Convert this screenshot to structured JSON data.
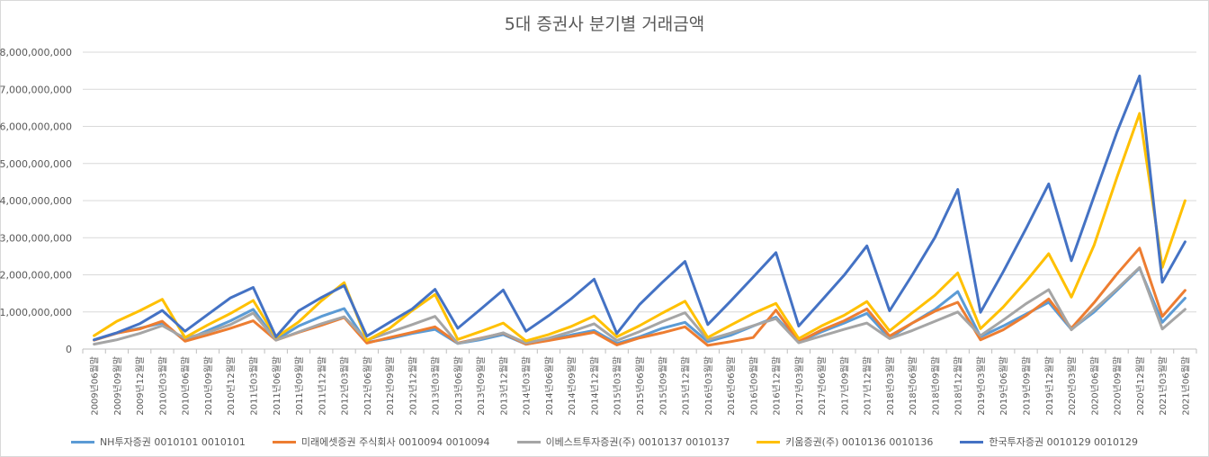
{
  "chart_data": {
    "type": "line",
    "title": "5대 증권사 분기별 거래금액",
    "xlabel": "",
    "ylabel": "",
    "ylim": [
      0,
      8000000000
    ],
    "yticks": [
      0,
      1000000000,
      2000000000,
      3000000000,
      4000000000,
      5000000000,
      6000000000,
      7000000000,
      8000000000
    ],
    "ytick_labels": [
      "0",
      "1,000,000,000",
      "2,000,000,000",
      "3,000,000,000",
      "4,000,000,000",
      "5,000,000,000",
      "6,000,000,000",
      "7,000,000,000",
      "8,000,000,000"
    ],
    "grid": true,
    "legend_position": "bottom",
    "categories": [
      "2009년06월말",
      "2009년09월말",
      "2009년12월말",
      "2010년03월말",
      "2010년06월말",
      "2010년09월말",
      "2010년12월말",
      "2011년03월말",
      "2011년06월말",
      "2011년09월말",
      "2011년12월말",
      "2012년03월말",
      "2012년06월말",
      "2012년09월말",
      "2012년12월말",
      "2013년03월말",
      "2013년06월말",
      "2013년09월말",
      "2013년12월말",
      "2014년03월말",
      "2014년06월말",
      "2014년09월말",
      "2014년12월말",
      "2015년03월말",
      "2015년06월말",
      "2015년09월말",
      "2015년12월말",
      "2016년03월말",
      "2016년06월말",
      "2016년09월말",
      "2016년12월말",
      "2017년03월말",
      "2017년06월말",
      "2017년09월말",
      "2017년12월말",
      "2018년03월말",
      "2018년06월말",
      "2018년09월말",
      "2018년12월말",
      "2019년03월말",
      "2019년06월말",
      "2019년09월말",
      "2019년12월말",
      "2020년03월말",
      "2020년06월말",
      "2020년09월말",
      "2020년12월말",
      "2021년03월말",
      "2021년06월말"
    ],
    "series": [
      {
        "name": "NH투자증권 0010101 0010101",
        "color": "#5B9BD5",
        "values": [
          240000000,
          430000000,
          560000000,
          700000000,
          230000000,
          500000000,
          760000000,
          1070000000,
          250000000,
          620000000,
          880000000,
          1090000000,
          180000000,
          280000000,
          420000000,
          530000000,
          150000000,
          250000000,
          390000000,
          130000000,
          250000000,
          380000000,
          500000000,
          150000000,
          330000000,
          560000000,
          720000000,
          200000000,
          370000000,
          620000000,
          860000000,
          200000000,
          460000000,
          700000000,
          960000000,
          290000000,
          700000000,
          1070000000,
          1550000000,
          330000000,
          620000000,
          940000000,
          1260000000,
          530000000,
          1000000000,
          1580000000,
          2180000000,
          720000000,
          1370000000
        ]
      },
      {
        "name": "미래에셋증권 주식회사 0010094 0010094",
        "color": "#ED7D31",
        "values": [
          240000000,
          430000000,
          540000000,
          750000000,
          210000000,
          380000000,
          560000000,
          760000000,
          240000000,
          450000000,
          640000000,
          850000000,
          160000000,
          310000000,
          450000000,
          600000000,
          160000000,
          290000000,
          430000000,
          130000000,
          230000000,
          340000000,
          450000000,
          110000000,
          300000000,
          440000000,
          600000000,
          100000000,
          200000000,
          310000000,
          1050000000,
          200000000,
          510000000,
          760000000,
          1080000000,
          350000000,
          700000000,
          1020000000,
          1260000000,
          250000000,
          520000000,
          900000000,
          1350000000,
          560000000,
          1250000000,
          2020000000,
          2720000000,
          880000000,
          1580000000
        ]
      },
      {
        "name": "이베스트투자증권(주) 0010137 0010137",
        "color": "#A5A5A5",
        "values": [
          130000000,
          250000000,
          420000000,
          630000000,
          290000000,
          450000000,
          660000000,
          970000000,
          240000000,
          460000000,
          680000000,
          870000000,
          240000000,
          450000000,
          660000000,
          880000000,
          150000000,
          280000000,
          440000000,
          160000000,
          290000000,
          470000000,
          680000000,
          230000000,
          470000000,
          740000000,
          980000000,
          250000000,
          430000000,
          630000000,
          820000000,
          170000000,
          350000000,
          530000000,
          700000000,
          280000000,
          500000000,
          750000000,
          1000000000,
          360000000,
          780000000,
          1220000000,
          1600000000,
          520000000,
          1060000000,
          1620000000,
          2200000000,
          540000000,
          1070000000
        ]
      },
      {
        "name": "키움증권(주) 0010136 0010136",
        "color": "#FFC000",
        "values": [
          360000000,
          750000000,
          1030000000,
          1340000000,
          310000000,
          650000000,
          960000000,
          1310000000,
          310000000,
          730000000,
          1300000000,
          1790000000,
          230000000,
          560000000,
          1040000000,
          1470000000,
          260000000,
          470000000,
          700000000,
          220000000,
          390000000,
          610000000,
          890000000,
          330000000,
          630000000,
          970000000,
          1290000000,
          310000000,
          640000000,
          960000000,
          1230000000,
          280000000,
          620000000,
          910000000,
          1280000000,
          490000000,
          980000000,
          1450000000,
          2050000000,
          550000000,
          1130000000,
          1820000000,
          2570000000,
          1400000000,
          2800000000,
          4620000000,
          6350000000,
          2200000000,
          4000000000
        ]
      },
      {
        "name": "한국투자증권 0010129 0010129",
        "color": "#4472C4",
        "values": [
          250000000,
          440000000,
          680000000,
          1040000000,
          480000000,
          930000000,
          1380000000,
          1660000000,
          330000000,
          1030000000,
          1390000000,
          1710000000,
          350000000,
          720000000,
          1080000000,
          1610000000,
          560000000,
          1070000000,
          1590000000,
          480000000,
          900000000,
          1360000000,
          1880000000,
          420000000,
          1200000000,
          1800000000,
          2360000000,
          660000000,
          1290000000,
          1940000000,
          2600000000,
          620000000,
          1300000000,
          1990000000,
          2780000000,
          1030000000,
          2000000000,
          3010000000,
          4300000000,
          990000000,
          2080000000,
          3240000000,
          4450000000,
          2380000000,
          4120000000,
          5840000000,
          7360000000,
          1800000000,
          2890000000
        ]
      }
    ]
  }
}
